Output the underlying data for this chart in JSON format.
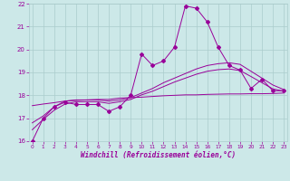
{
  "x_hours": [
    0,
    1,
    2,
    3,
    4,
    5,
    6,
    7,
    8,
    9,
    10,
    11,
    12,
    13,
    14,
    15,
    16,
    17,
    18,
    19,
    20,
    21,
    22,
    23
  ],
  "main_line": [
    16.0,
    17.0,
    17.5,
    17.7,
    17.6,
    17.6,
    17.6,
    17.3,
    17.5,
    18.0,
    19.8,
    19.3,
    19.5,
    20.1,
    21.9,
    21.8,
    21.2,
    20.1,
    19.3,
    19.1,
    18.3,
    18.7,
    18.2,
    18.2
  ],
  "smooth_line1": [
    16.8,
    17.1,
    17.5,
    17.75,
    17.8,
    17.8,
    17.8,
    17.75,
    17.8,
    17.9,
    18.1,
    18.3,
    18.55,
    18.75,
    18.95,
    19.15,
    19.3,
    19.38,
    19.42,
    19.35,
    19.05,
    18.75,
    18.45,
    18.25
  ],
  "smooth_line2": [
    16.5,
    16.95,
    17.35,
    17.62,
    17.72,
    17.72,
    17.72,
    17.65,
    17.72,
    17.82,
    18.02,
    18.18,
    18.38,
    18.58,
    18.75,
    18.92,
    19.05,
    19.12,
    19.15,
    19.08,
    18.82,
    18.55,
    18.28,
    18.18
  ],
  "flat_line": [
    17.55,
    17.62,
    17.68,
    17.75,
    17.78,
    17.8,
    17.82,
    17.82,
    17.88,
    17.9,
    17.92,
    17.95,
    17.98,
    18.0,
    18.02,
    18.02,
    18.04,
    18.05,
    18.06,
    18.06,
    18.07,
    18.07,
    18.08,
    18.1
  ],
  "line_color": "#990099",
  "bg_color": "#cce8e8",
  "grid_color": "#aacccc",
  "xlabel": "Windchill (Refroidissement éolien,°C)",
  "ylim": [
    16,
    22
  ],
  "xlim": [
    0,
    23
  ],
  "yticks": [
    16,
    17,
    18,
    19,
    20,
    21,
    22
  ],
  "xticks": [
    0,
    1,
    2,
    3,
    4,
    5,
    6,
    7,
    8,
    9,
    10,
    11,
    12,
    13,
    14,
    15,
    16,
    17,
    18,
    19,
    20,
    21,
    22,
    23
  ]
}
